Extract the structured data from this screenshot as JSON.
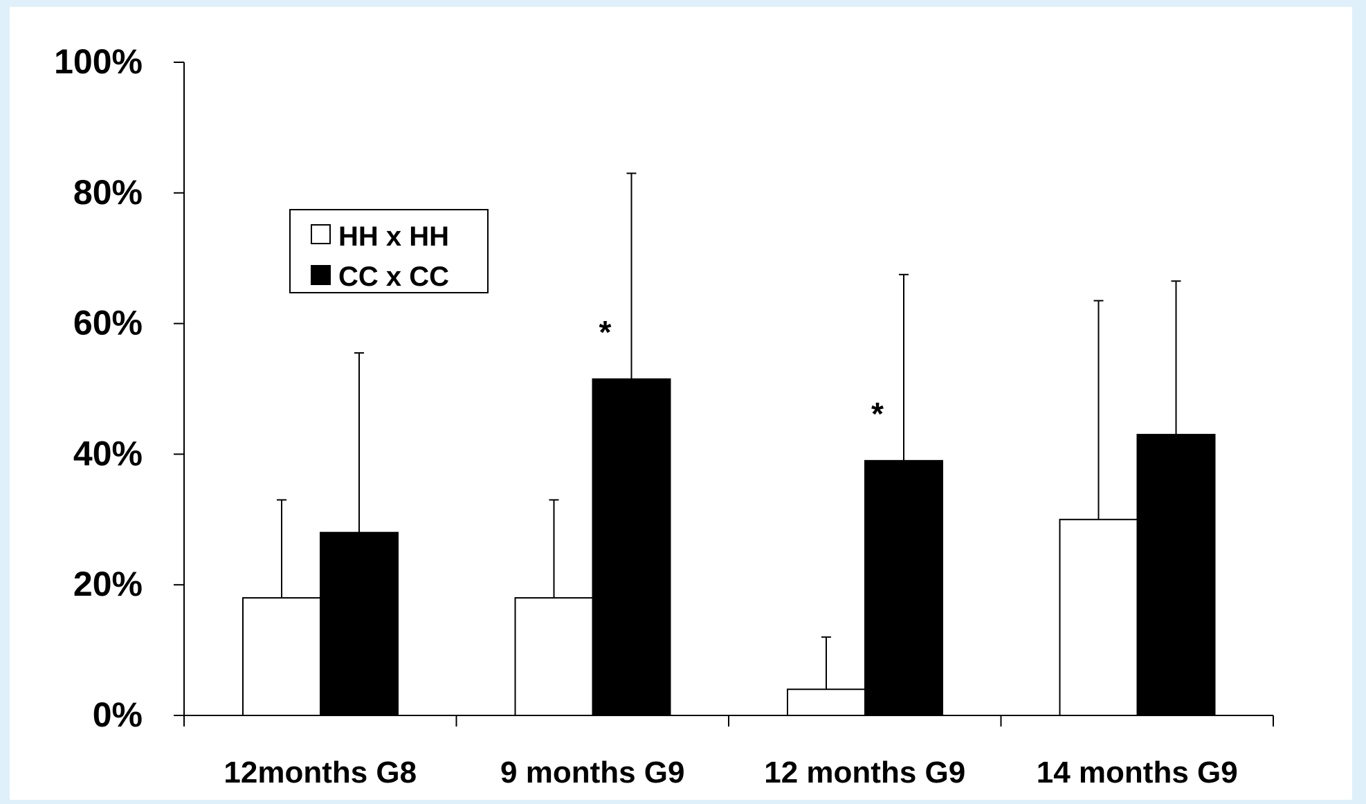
{
  "chart_data": {
    "type": "bar",
    "categories": [
      "12months G8",
      "9 months G9",
      "12 months G9",
      "14 months G9"
    ],
    "series": [
      {
        "name": "HH x HH",
        "color": "#ffffff",
        "values": [
          18,
          18,
          4,
          30
        ],
        "errors": [
          15,
          15,
          8,
          33.5
        ]
      },
      {
        "name": "CC x CC",
        "color": "#000000",
        "values": [
          28,
          51.5,
          39,
          43
        ],
        "errors": [
          27.5,
          31.5,
          28.5,
          23.5
        ]
      }
    ],
    "annotations": [
      {
        "text": "*",
        "category": "9 months G9"
      },
      {
        "text": "*",
        "category": "12 months G9"
      }
    ],
    "yticks": [
      "0%",
      "20%",
      "40%",
      "60%",
      "80%",
      "100%"
    ],
    "ylim": [
      0,
      100
    ],
    "title": "",
    "xlabel": "",
    "ylabel": "",
    "grid": false,
    "legend_position": "top-left"
  }
}
